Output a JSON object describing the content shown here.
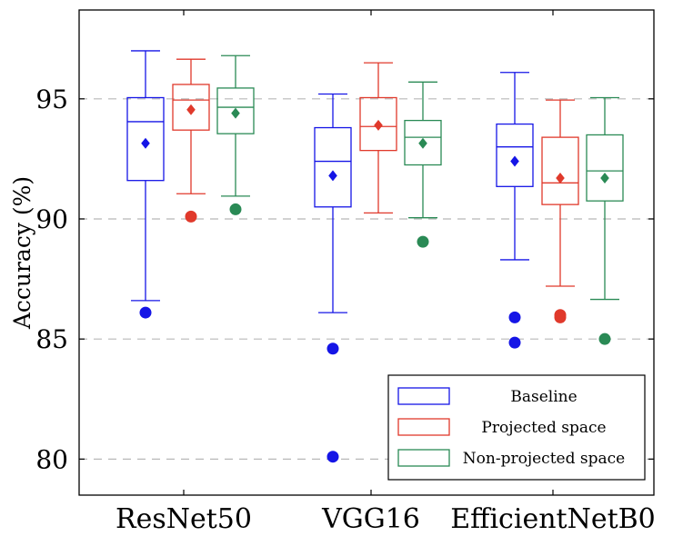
{
  "chart_data": {
    "type": "box",
    "ylabel": "Accuracy (%)",
    "ylim": [
      78.5,
      98.7
    ],
    "yticks": [
      80,
      85,
      90,
      95
    ],
    "grid": "horizontal-dashed",
    "legend_position": "bottom-right",
    "categories": [
      "ResNet50",
      "VGG16",
      "EfficientNetB0"
    ],
    "series": [
      {
        "name": "Baseline",
        "color": "#1515e6",
        "boxes": [
          {
            "whisker_low": 86.6,
            "q1": 91.6,
            "median": 94.05,
            "q3": 95.05,
            "whisker_high": 97.0,
            "mean": 93.15,
            "outliers": [
              86.1
            ]
          },
          {
            "whisker_low": 86.1,
            "q1": 90.5,
            "median": 92.4,
            "q3": 93.8,
            "whisker_high": 95.2,
            "mean": 91.8,
            "outliers": [
              84.6,
              80.1
            ]
          },
          {
            "whisker_low": 88.3,
            "q1": 91.35,
            "median": 93.0,
            "q3": 93.95,
            "whisker_high": 96.1,
            "mean": 92.4,
            "outliers": [
              85.9,
              84.85
            ]
          }
        ]
      },
      {
        "name": "Projected space",
        "color": "#e0392b",
        "boxes": [
          {
            "whisker_low": 91.05,
            "q1": 93.7,
            "median": 94.95,
            "q3": 95.6,
            "whisker_high": 96.65,
            "mean": 94.55,
            "outliers": [
              90.1
            ]
          },
          {
            "whisker_low": 90.25,
            "q1": 92.85,
            "median": 93.85,
            "q3": 95.05,
            "whisker_high": 96.5,
            "mean": 93.9,
            "outliers": []
          },
          {
            "whisker_low": 87.2,
            "q1": 90.6,
            "median": 91.5,
            "q3": 93.4,
            "whisker_high": 94.95,
            "mean": 91.7,
            "outliers": [
              86.0,
              85.9
            ]
          }
        ]
      },
      {
        "name": "Non-projected space",
        "color": "#2a8a55",
        "boxes": [
          {
            "whisker_low": 90.95,
            "q1": 93.55,
            "median": 94.65,
            "q3": 95.45,
            "whisker_high": 96.8,
            "mean": 94.4,
            "outliers": [
              90.4
            ]
          },
          {
            "whisker_low": 90.05,
            "q1": 92.25,
            "median": 93.4,
            "q3": 94.1,
            "whisker_high": 95.7,
            "mean": 93.15,
            "outliers": [
              89.05
            ]
          },
          {
            "whisker_low": 86.65,
            "q1": 90.75,
            "median": 92.0,
            "q3": 93.5,
            "whisker_high": 95.05,
            "mean": 91.7,
            "outliers": [
              85.0
            ]
          }
        ]
      }
    ]
  }
}
